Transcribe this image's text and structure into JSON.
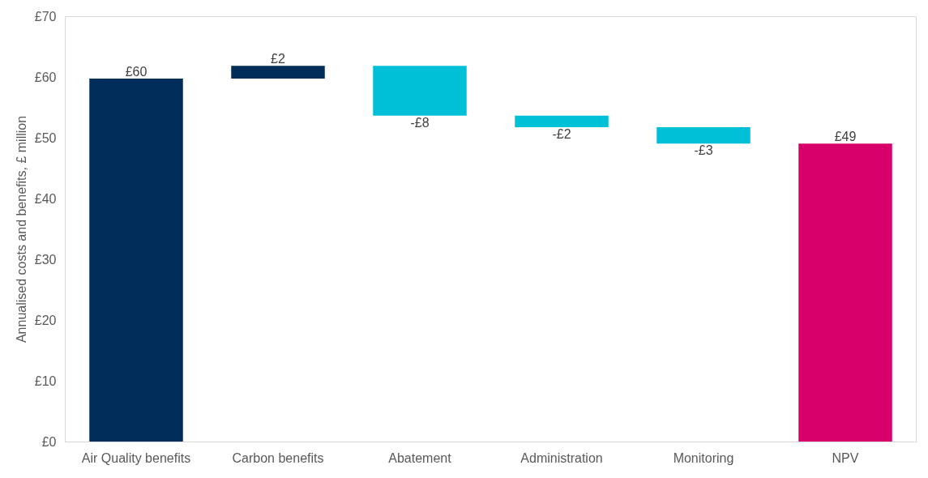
{
  "chart_data": {
    "type": "bar",
    "ylabel": "Annualised costs and benefits, £ million",
    "categories": [
      "Air Quality benefits",
      "Carbon benefits",
      "Abatement",
      "Administration",
      "Monitoring",
      "NPV"
    ],
    "values": [
      59.8,
      2.1,
      -8.2,
      -1.9,
      -2.7,
      49.1
    ],
    "base": [
      0,
      59.8,
      61.9,
      53.7,
      51.8,
      0
    ],
    "colors": [
      "#002d5a",
      "#002d5a",
      "#00c0d8",
      "#00c0d8",
      "#00c0d8",
      "#d8006b"
    ],
    "value_labels": [
      "£60",
      "£2",
      "-£8",
      "-£2",
      "-£3",
      "£49"
    ],
    "ylim": [
      0,
      70
    ],
    "yticks": [
      {
        "value": 0,
        "label": "£0"
      },
      {
        "value": 10,
        "label": "£10"
      },
      {
        "value": 20,
        "label": "£20"
      },
      {
        "value": 30,
        "label": "£30"
      },
      {
        "value": 40,
        "label": "£40"
      },
      {
        "value": 50,
        "label": "£50"
      },
      {
        "value": 60,
        "label": "£60"
      },
      {
        "value": 70,
        "label": "£70"
      }
    ],
    "grid": false
  }
}
